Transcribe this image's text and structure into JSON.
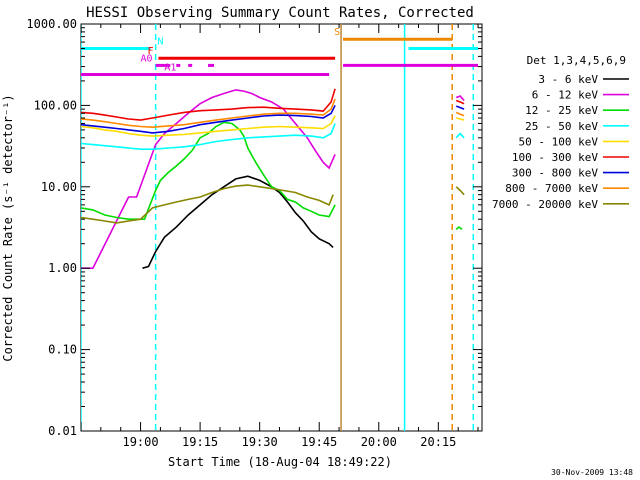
{
  "chart_data": {
    "type": "line",
    "title": "HESSI Observing Summary Count Rates, Corrected",
    "xlabel": "Start Time (18-Aug-04 18:49:22)",
    "ylabel": "Corrected Count Rate (s⁻¹ detector⁻¹)",
    "yscale": "log",
    "ylim": [
      0.01,
      1000
    ],
    "xlim_minutes_after_start": [
      -4,
      97
    ],
    "x_unit": "minutes after 18:49:22",
    "ytick_labels": [
      "0.01",
      "0.10",
      "1.00",
      "10.00",
      "100.00",
      "1000.00"
    ],
    "ytick_values": [
      0.01,
      0.1,
      1,
      10,
      100,
      1000
    ],
    "xtick_labels": [
      "19:00",
      "19:15",
      "19:30",
      "19:45",
      "20:00",
      "20:15"
    ],
    "xtick_values": [
      11,
      26,
      41,
      56,
      71,
      86
    ],
    "legend_title": "Det 1,3,4,5,6,9",
    "legend_position": "right",
    "grid": false,
    "timestamp": "30-Nov-2009 13:48",
    "series": [
      {
        "name": "3 - 6 keV",
        "color": "#000000",
        "x": [
          11.5,
          13,
          14.8,
          17,
          20,
          23,
          26,
          29,
          32,
          35,
          38,
          41,
          44,
          46,
          48,
          50,
          52,
          54,
          56,
          58.5,
          59.5
        ],
        "y": [
          1.0,
          1.05,
          1.6,
          2.4,
          3.2,
          4.5,
          6.0,
          8.0,
          10.0,
          12.5,
          13.5,
          12.0,
          10.0,
          8.5,
          6.5,
          4.8,
          3.8,
          2.8,
          2.3,
          2.0,
          1.8
        ]
      },
      {
        "name": "6 - 12 keV",
        "color": "#dd00dd",
        "x": [
          -4,
          -1,
          8,
          10,
          14.8,
          17,
          20,
          23,
          26,
          29,
          32,
          35,
          37,
          39,
          41,
          44,
          47,
          50,
          53,
          55,
          57,
          58.5,
          60
        ],
        "y": [
          1.0,
          1.0,
          7.5,
          7.5,
          33,
          45,
          60,
          80,
          105,
          125,
          140,
          155,
          150,
          140,
          125,
          110,
          90,
          60,
          40,
          28,
          20,
          17,
          25
        ]
      },
      {
        "name": "12 - 25 keV",
        "color": "#00dd00",
        "x": [
          -4,
          -1,
          2,
          5,
          8,
          12,
          14.8,
          16,
          18,
          20,
          22,
          24,
          26,
          28,
          30,
          32,
          34,
          36,
          37,
          38,
          40,
          42,
          44,
          46,
          48,
          50,
          52,
          54,
          56,
          58.5,
          60
        ],
        "y": [
          5.5,
          5.2,
          4.5,
          4.2,
          4.0,
          4.0,
          9.0,
          12,
          15,
          18,
          22,
          28,
          40,
          45,
          55,
          62,
          60,
          50,
          42,
          30,
          20,
          14,
          10,
          9,
          7,
          6.5,
          5.5,
          5.0,
          4.5,
          4.3,
          6.0
        ]
      },
      {
        "name": "25 - 50 keV",
        "color": "#00ffff",
        "x": [
          -4,
          -1,
          2,
          5,
          8,
          11,
          14,
          18,
          22,
          26,
          30,
          34,
          38,
          42,
          46,
          50,
          54,
          57,
          59,
          60
        ],
        "y": [
          34,
          33,
          32,
          31,
          30,
          29,
          29,
          30,
          31,
          33,
          36,
          38,
          40,
          41,
          42,
          43,
          42,
          40,
          45,
          60
        ]
      },
      {
        "name": "50 - 100 keV",
        "color": "#ffdd00",
        "x": [
          -4,
          -1,
          2,
          5,
          8,
          11,
          14,
          18,
          22,
          26,
          30,
          34,
          38,
          42,
          46,
          50,
          54,
          57,
          59,
          60
        ],
        "y": [
          55,
          53,
          50,
          48,
          45,
          43,
          42,
          43,
          44,
          46,
          48,
          50,
          52,
          54,
          55,
          54,
          53,
          52,
          60,
          75
        ]
      },
      {
        "name": "100 - 300 keV",
        "color": "#ee0000",
        "x": [
          -4,
          -1,
          2,
          5,
          8,
          11,
          14,
          18,
          22,
          26,
          30,
          34,
          38,
          42,
          46,
          50,
          54,
          57,
          59,
          60
        ],
        "y": [
          82,
          80,
          76,
          72,
          68,
          66,
          70,
          76,
          82,
          86,
          88,
          90,
          94,
          95,
          92,
          90,
          88,
          85,
          110,
          160
        ]
      },
      {
        "name": "300 - 800 keV",
        "color": "#0000dd",
        "x": [
          -4,
          -1,
          2,
          5,
          8,
          11,
          14,
          18,
          22,
          26,
          30,
          34,
          38,
          42,
          46,
          50,
          54,
          57,
          59,
          60
        ],
        "y": [
          58,
          56,
          54,
          52,
          50,
          48,
          46,
          48,
          52,
          58,
          62,
          66,
          70,
          74,
          76,
          75,
          73,
          70,
          80,
          100
        ]
      },
      {
        "name": "800 - 7000 keV",
        "color": "#ff8800",
        "x": [
          -4,
          -1,
          2,
          5,
          8,
          11,
          14,
          18,
          22,
          26,
          30,
          34,
          38,
          42,
          46,
          50,
          54,
          57,
          59,
          60
        ],
        "y": [
          68,
          66,
          63,
          60,
          57,
          55,
          54,
          56,
          58,
          62,
          66,
          70,
          74,
          78,
          80,
          80,
          78,
          76,
          90,
          120
        ]
      },
      {
        "name": "7000 - 20000 keV",
        "color": "#888800",
        "x": [
          -4,
          -1,
          2,
          5,
          8,
          11,
          14,
          17,
          20,
          23,
          26,
          29,
          32,
          35,
          38,
          41,
          44,
          47,
          50,
          53,
          56,
          58.5,
          59.5
        ],
        "y": [
          4.2,
          4.0,
          3.8,
          3.6,
          3.8,
          4.0,
          5.5,
          6.0,
          6.5,
          7.0,
          7.5,
          8.5,
          9.5,
          10.2,
          10.5,
          10.0,
          9.5,
          9.0,
          8.5,
          7.5,
          6.8,
          6.0,
          8.0
        ]
      }
    ],
    "after_gap_series": [
      {
        "name": "6 - 12 keV",
        "x": [
          90.5,
          91.5,
          92.5
        ],
        "y": [
          125,
          130,
          115
        ]
      },
      {
        "name": "100 - 300 keV",
        "x": [
          90.5,
          91.5,
          92.5
        ],
        "y": [
          115,
          110,
          105
        ]
      },
      {
        "name": "300 - 800 keV",
        "x": [
          90.5,
          91.5,
          92.5
        ],
        "y": [
          98,
          94,
          90
        ]
      },
      {
        "name": "800 - 7000 keV",
        "x": [
          90.5,
          91.5,
          92.5
        ],
        "y": [
          82,
          78,
          75
        ]
      },
      {
        "name": "50 - 100 keV",
        "x": [
          90.5,
          91.5,
          92.5
        ],
        "y": [
          70,
          68,
          66
        ]
      },
      {
        "name": "25 - 50 keV",
        "x": [
          90.5,
          91.5,
          92.5
        ],
        "y": [
          40,
          45,
          40
        ]
      },
      {
        "name": "7000 - 20000 keV",
        "x": [
          90.5,
          91.5,
          92.5
        ],
        "y": [
          10,
          9,
          8
        ]
      },
      {
        "name": "12 - 25 keV",
        "x": [
          90.5,
          91.2,
          92.0
        ],
        "y": [
          3.0,
          3.2,
          3.0
        ]
      }
    ],
    "vertical_lines": [
      {
        "x": -4,
        "color": "#00ffff",
        "style": "solid"
      },
      {
        "x": 14.8,
        "color": "#00ffff",
        "style": "dashed"
      },
      {
        "x": 61.5,
        "color": "#bb8833",
        "style": "solid"
      },
      {
        "x": 77.5,
        "color": "#00ffff",
        "style": "solid"
      },
      {
        "x": 89.5,
        "color": "#ee8800",
        "style": "dashed"
      },
      {
        "x": 94.8,
        "color": "#00ffff",
        "style": "dashed"
      }
    ],
    "flag_bars": [
      {
        "label": "N",
        "label_color": "#00ffff",
        "label_x": 16,
        "color": "#00ffff",
        "y": 500,
        "segments": [
          [
            -4,
            13.5
          ],
          [
            78.5,
            96
          ]
        ]
      },
      {
        "label": "S",
        "label_color": "#ee8800",
        "label_x": 60.5,
        "color": "#ee8800",
        "y": 650,
        "segments": [
          [
            62,
            89.5
          ]
        ]
      },
      {
        "label": "F",
        "label_color": "#ee0000",
        "label_x": 13.5,
        "color": "#ee0000",
        "y": 380,
        "segments": [
          [
            15.5,
            60
          ]
        ]
      },
      {
        "label": "A0",
        "label_color": "#dd00dd",
        "label_x": 12.5,
        "color": "#dd00dd",
        "y": 310,
        "segments": [
          [
            14.8,
            18.5
          ],
          [
            20,
            21
          ],
          [
            23,
            24
          ],
          [
            28,
            29.5
          ],
          [
            62,
            96
          ]
        ]
      },
      {
        "label": "A1",
        "label_color": "#dd00dd",
        "label_x": 18.5,
        "color": "#dd00dd",
        "y": 240,
        "segments": [
          [
            -4,
            58.5
          ]
        ]
      }
    ]
  }
}
